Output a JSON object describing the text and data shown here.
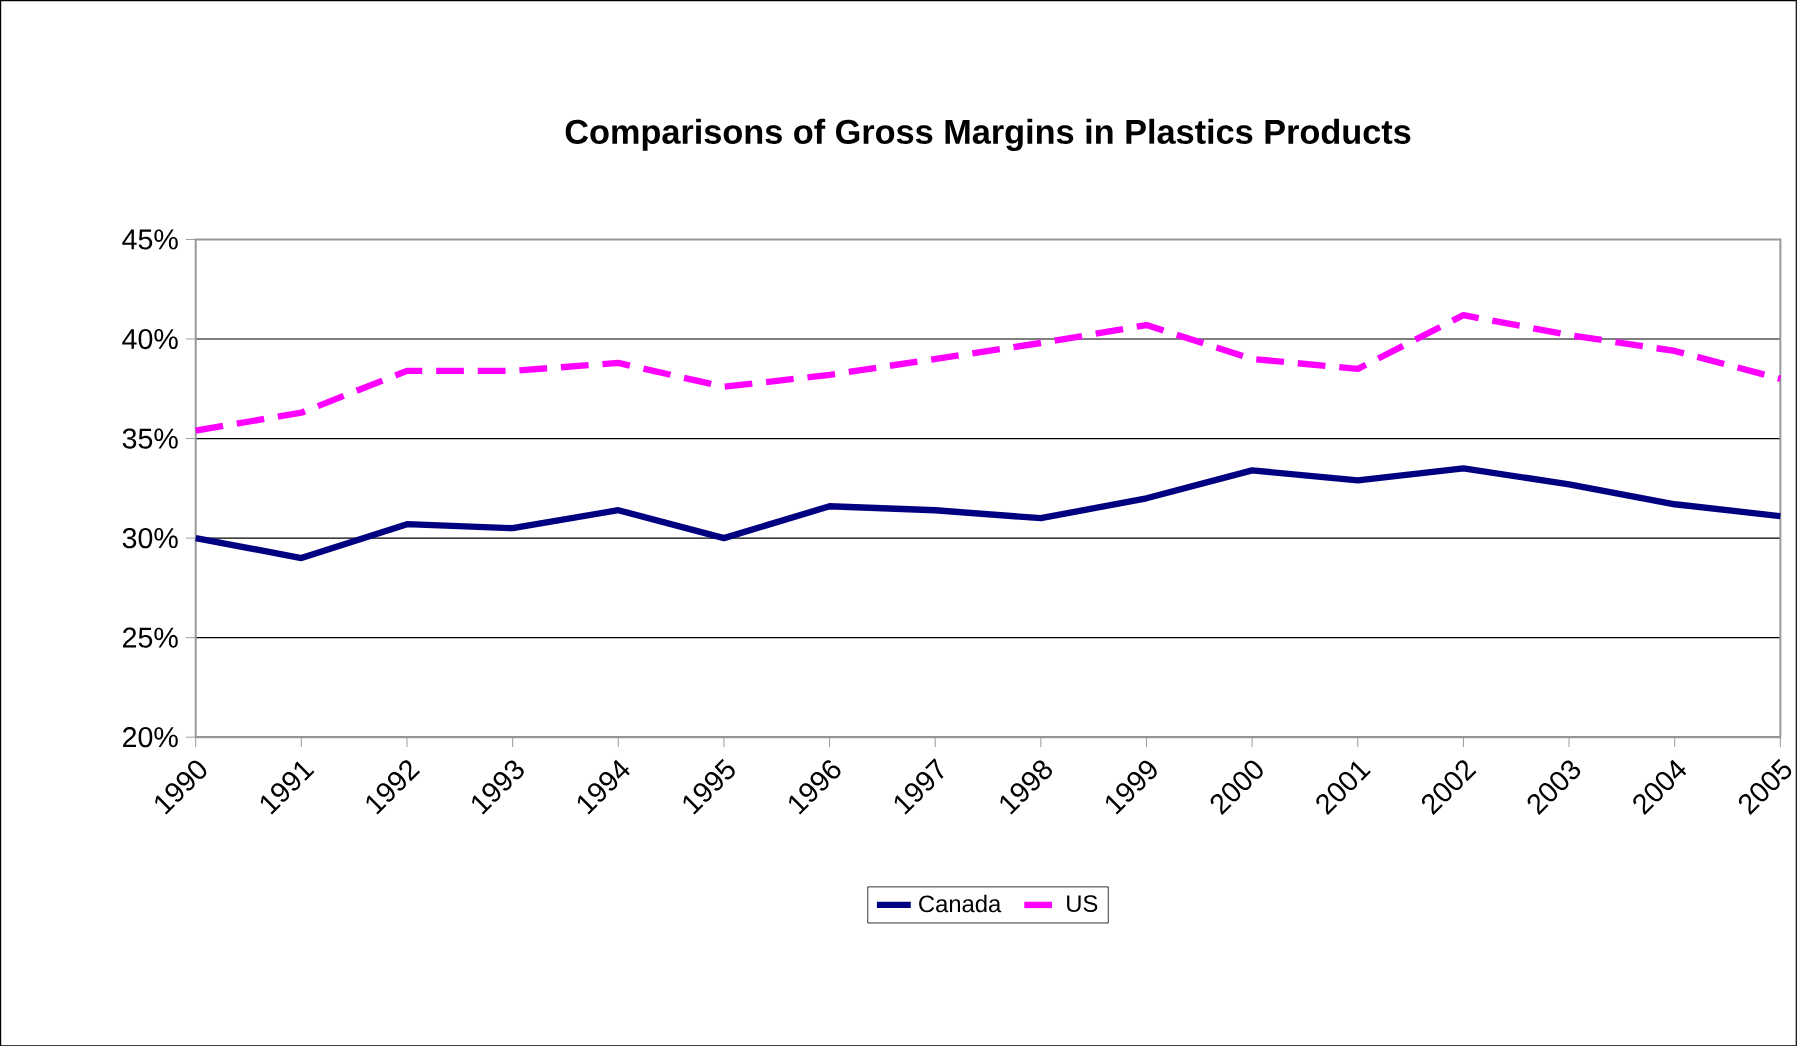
{
  "chart_data": {
    "type": "line",
    "title": "Comparisons of Gross Margins in Plastics Products",
    "categories": [
      "1990",
      "1991",
      "1992",
      "1993",
      "1994",
      "1995",
      "1996",
      "1997",
      "1998",
      "1999",
      "2000",
      "2001",
      "2002",
      "2003",
      "2004",
      "2005"
    ],
    "series": [
      {
        "name": "Canada",
        "color": "#000080",
        "line_style": "solid",
        "values": [
          30.0,
          29.0,
          30.7,
          30.5,
          31.4,
          30.0,
          31.6,
          31.4,
          31.0,
          32.0,
          33.4,
          32.9,
          33.5,
          32.7,
          31.7,
          31.1
        ]
      },
      {
        "name": "US",
        "color": "#ff00ff",
        "line_style": "dashed",
        "values": [
          35.4,
          36.3,
          38.4,
          38.4,
          38.8,
          37.6,
          38.2,
          39.0,
          39.8,
          40.7,
          39.0,
          38.5,
          41.2,
          40.2,
          39.4,
          38.0
        ]
      }
    ],
    "ylim": [
      20,
      45
    ],
    "yticks": [
      {
        "value": 20,
        "label": "20%"
      },
      {
        "value": 25,
        "label": "25%"
      },
      {
        "value": 30,
        "label": "30%"
      },
      {
        "value": 35,
        "label": "35%"
      },
      {
        "value": 40,
        "label": "40%"
      },
      {
        "value": 45,
        "label": "45%"
      }
    ],
    "grid": "y",
    "legend": "bottom",
    "marker": "none"
  }
}
